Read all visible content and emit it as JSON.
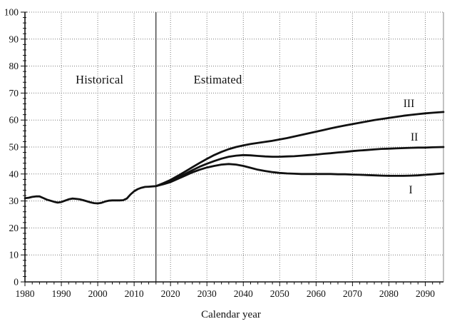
{
  "chart_data": {
    "type": "line",
    "title": "",
    "xlabel": "Calendar year",
    "ylabel": "",
    "xlim": [
      1980,
      2095
    ],
    "ylim": [
      0,
      100
    ],
    "x_tick_labels": [
      1980,
      1990,
      2000,
      2010,
      2020,
      2030,
      2040,
      2050,
      2060,
      2070,
      2080,
      2090
    ],
    "y_tick_labels": [
      0,
      10,
      20,
      30,
      40,
      50,
      60,
      70,
      80,
      90,
      100
    ],
    "x_minor_tick_step": 2,
    "y_minor_tick_step": 2,
    "grid": "dotted major gridlines every 10 years and 10 units",
    "legend_position": "none",
    "divider_year": 2016,
    "colors": {
      "line": "#111111",
      "grid": "#7a7a7a",
      "axis": "#111111",
      "right_border": "#999999",
      "background": "#ffffff"
    },
    "annotations": [
      {
        "text": "Historical",
        "x": 2000.5,
        "y": 75
      },
      {
        "text": "Estimated",
        "x": 2033,
        "y": 75
      },
      {
        "text": "III",
        "x": 2085.5,
        "y": 66
      },
      {
        "text": "II",
        "x": 2087,
        "y": 53.5
      },
      {
        "text": "I",
        "x": 2086,
        "y": 33.8
      }
    ],
    "series": [
      {
        "name": "Historical",
        "points": [
          [
            1980,
            31.0
          ],
          [
            1981,
            31.2
          ],
          [
            1982,
            31.5
          ],
          [
            1983,
            31.7
          ],
          [
            1984,
            31.7
          ],
          [
            1985,
            31.1
          ],
          [
            1986,
            30.5
          ],
          [
            1987,
            30.1
          ],
          [
            1988,
            29.7
          ],
          [
            1989,
            29.4
          ],
          [
            1990,
            29.6
          ],
          [
            1991,
            30.1
          ],
          [
            1992,
            30.6
          ],
          [
            1993,
            30.9
          ],
          [
            1994,
            30.8
          ],
          [
            1995,
            30.6
          ],
          [
            1996,
            30.3
          ],
          [
            1997,
            29.9
          ],
          [
            1998,
            29.5
          ],
          [
            1999,
            29.2
          ],
          [
            2000,
            29.1
          ],
          [
            2001,
            29.3
          ],
          [
            2002,
            29.8
          ],
          [
            2003,
            30.1
          ],
          [
            2004,
            30.2
          ],
          [
            2005,
            30.2
          ],
          [
            2006,
            30.2
          ],
          [
            2007,
            30.3
          ],
          [
            2008,
            30.9
          ],
          [
            2009,
            32.4
          ],
          [
            2010,
            33.6
          ],
          [
            2011,
            34.4
          ],
          [
            2012,
            34.9
          ],
          [
            2013,
            35.2
          ],
          [
            2014,
            35.3
          ],
          [
            2015,
            35.4
          ],
          [
            2016,
            35.5
          ]
        ]
      },
      {
        "name": "I",
        "points": [
          [
            2016,
            35.5
          ],
          [
            2018,
            36.2
          ],
          [
            2020,
            37.0
          ],
          [
            2022,
            38.2
          ],
          [
            2024,
            39.4
          ],
          [
            2026,
            40.6
          ],
          [
            2028,
            41.6
          ],
          [
            2030,
            42.4
          ],
          [
            2032,
            43.0
          ],
          [
            2034,
            43.5
          ],
          [
            2036,
            43.7
          ],
          [
            2038,
            43.5
          ],
          [
            2040,
            43.0
          ],
          [
            2042,
            42.3
          ],
          [
            2044,
            41.6
          ],
          [
            2046,
            41.1
          ],
          [
            2048,
            40.7
          ],
          [
            2050,
            40.4
          ],
          [
            2052,
            40.2
          ],
          [
            2054,
            40.1
          ],
          [
            2056,
            40.0
          ],
          [
            2058,
            40.0
          ],
          [
            2060,
            40.0
          ],
          [
            2062,
            40.0
          ],
          [
            2064,
            40.0
          ],
          [
            2066,
            39.9
          ],
          [
            2068,
            39.9
          ],
          [
            2070,
            39.8
          ],
          [
            2072,
            39.7
          ],
          [
            2074,
            39.6
          ],
          [
            2076,
            39.5
          ],
          [
            2078,
            39.4
          ],
          [
            2080,
            39.3
          ],
          [
            2082,
            39.3
          ],
          [
            2084,
            39.3
          ],
          [
            2086,
            39.4
          ],
          [
            2088,
            39.5
          ],
          [
            2090,
            39.7
          ],
          [
            2092,
            39.9
          ],
          [
            2095,
            40.2
          ]
        ]
      },
      {
        "name": "II",
        "points": [
          [
            2016,
            35.5
          ],
          [
            2018,
            36.4
          ],
          [
            2020,
            37.4
          ],
          [
            2022,
            38.7
          ],
          [
            2024,
            40.0
          ],
          [
            2026,
            41.4
          ],
          [
            2028,
            42.7
          ],
          [
            2030,
            43.8
          ],
          [
            2032,
            44.8
          ],
          [
            2034,
            45.7
          ],
          [
            2036,
            46.4
          ],
          [
            2038,
            46.8
          ],
          [
            2040,
            47.0
          ],
          [
            2042,
            46.9
          ],
          [
            2044,
            46.7
          ],
          [
            2046,
            46.5
          ],
          [
            2048,
            46.4
          ],
          [
            2050,
            46.4
          ],
          [
            2052,
            46.5
          ],
          [
            2054,
            46.6
          ],
          [
            2056,
            46.8
          ],
          [
            2058,
            47.0
          ],
          [
            2060,
            47.2
          ],
          [
            2062,
            47.5
          ],
          [
            2064,
            47.7
          ],
          [
            2066,
            48.0
          ],
          [
            2068,
            48.2
          ],
          [
            2070,
            48.5
          ],
          [
            2072,
            48.7
          ],
          [
            2074,
            48.9
          ],
          [
            2076,
            49.1
          ],
          [
            2078,
            49.3
          ],
          [
            2080,
            49.4
          ],
          [
            2082,
            49.5
          ],
          [
            2084,
            49.6
          ],
          [
            2086,
            49.7
          ],
          [
            2088,
            49.8
          ],
          [
            2090,
            49.8
          ],
          [
            2092,
            49.9
          ],
          [
            2095,
            50.0
          ]
        ]
      },
      {
        "name": "III",
        "points": [
          [
            2016,
            35.5
          ],
          [
            2018,
            36.6
          ],
          [
            2020,
            37.8
          ],
          [
            2022,
            39.3
          ],
          [
            2024,
            40.9
          ],
          [
            2026,
            42.5
          ],
          [
            2028,
            44.1
          ],
          [
            2030,
            45.6
          ],
          [
            2032,
            47.0
          ],
          [
            2034,
            48.2
          ],
          [
            2036,
            49.2
          ],
          [
            2038,
            50.0
          ],
          [
            2040,
            50.6
          ],
          [
            2042,
            51.1
          ],
          [
            2044,
            51.5
          ],
          [
            2046,
            51.9
          ],
          [
            2048,
            52.3
          ],
          [
            2050,
            52.8
          ],
          [
            2052,
            53.3
          ],
          [
            2054,
            53.9
          ],
          [
            2056,
            54.5
          ],
          [
            2058,
            55.1
          ],
          [
            2060,
            55.7
          ],
          [
            2062,
            56.3
          ],
          [
            2064,
            56.9
          ],
          [
            2066,
            57.5
          ],
          [
            2068,
            58.0
          ],
          [
            2070,
            58.5
          ],
          [
            2072,
            59.0
          ],
          [
            2074,
            59.5
          ],
          [
            2076,
            60.0
          ],
          [
            2078,
            60.4
          ],
          [
            2080,
            60.8
          ],
          [
            2082,
            61.2
          ],
          [
            2084,
            61.6
          ],
          [
            2086,
            61.9
          ],
          [
            2088,
            62.2
          ],
          [
            2090,
            62.5
          ],
          [
            2092,
            62.7
          ],
          [
            2095,
            63.0
          ]
        ]
      }
    ]
  }
}
